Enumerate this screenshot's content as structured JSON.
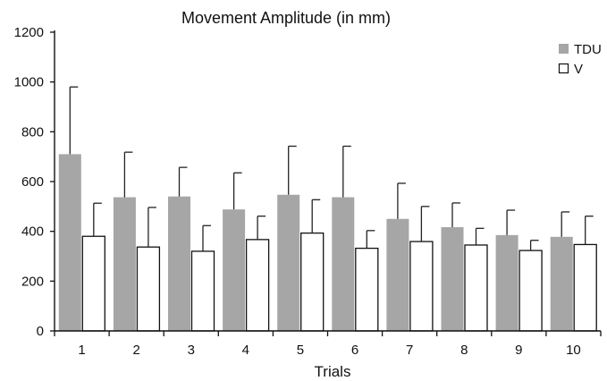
{
  "chart_data": {
    "type": "bar",
    "title": "Movement Amplitude  (in mm)",
    "xlabel": "Trials",
    "ylabel": "",
    "ylim": [
      0,
      1200
    ],
    "yticks": [
      0,
      200,
      400,
      600,
      800,
      1000,
      1200
    ],
    "grid": false,
    "legend_position": "top-right",
    "categories": [
      "1",
      "2",
      "3",
      "4",
      "5",
      "6",
      "7",
      "8",
      "9",
      "10"
    ],
    "series": [
      {
        "name": "TDU",
        "color": "#a6a6a6",
        "values": [
          710,
          537,
          540,
          488,
          547,
          537,
          450,
          417,
          385,
          378
        ],
        "error_upper": [
          980,
          718,
          657,
          635,
          742,
          742,
          593,
          514,
          485,
          478
        ]
      },
      {
        "name": "V",
        "color": "#ffffff",
        "values": [
          380,
          337,
          320,
          367,
          393,
          332,
          359,
          345,
          323,
          347
        ],
        "error_upper": [
          513,
          496,
          423,
          461,
          527,
          403,
          500,
          412,
          364,
          461
        ]
      }
    ]
  }
}
